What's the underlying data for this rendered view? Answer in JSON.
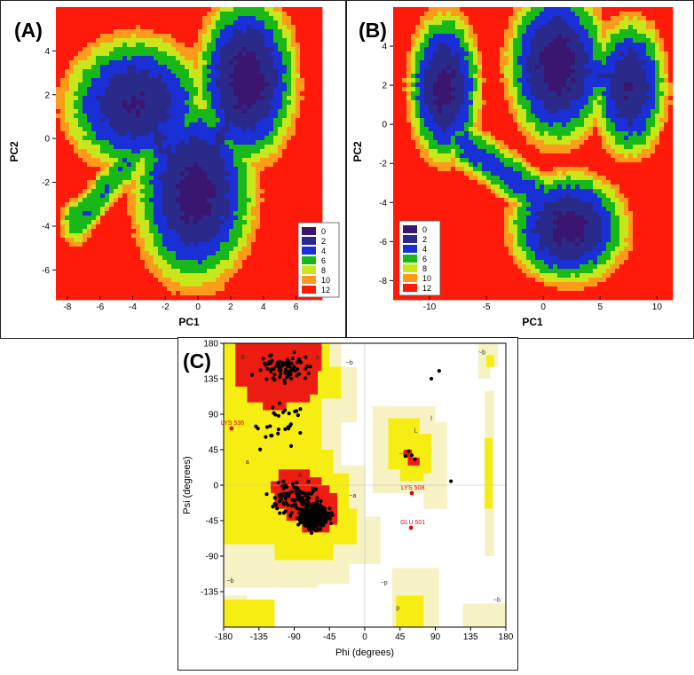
{
  "panels": [
    {
      "label": "(A)",
      "chart_data": {
        "type": "heatmap",
        "xlabel": "PC1",
        "ylabel": "PC2",
        "xlim": [
          -8.7,
          7.6
        ],
        "ylim": [
          -7.2,
          6.0
        ],
        "xticks": [
          -8,
          -6,
          -4,
          -2,
          0,
          2,
          4,
          6
        ],
        "yticks": [
          -6,
          -4,
          -2,
          0,
          2,
          4
        ],
        "legend": {
          "position": "bottom-right",
          "levels": [
            0,
            2,
            4,
            6,
            8,
            10,
            12
          ]
        },
        "basins": [
          {
            "x": -3.8,
            "y": 1.6,
            "energy": 1.5
          },
          {
            "x": 3.0,
            "y": 2.7,
            "energy": 0.5
          },
          {
            "x": -0.2,
            "y": -2.4,
            "energy": 0.8
          }
        ]
      }
    },
    {
      "label": "(B)",
      "chart_data": {
        "type": "heatmap",
        "xlabel": "PC1",
        "ylabel": "PC2",
        "xlim": [
          -13.2,
          11.3
        ],
        "ylim": [
          -8.8,
          6.0
        ],
        "xticks": [
          -10,
          -5,
          0,
          5,
          10
        ],
        "yticks": [
          -8,
          -6,
          -4,
          -2,
          0,
          2,
          4
        ],
        "legend": {
          "position": "bottom-left",
          "levels": [
            0,
            2,
            4,
            6,
            8,
            10,
            12
          ]
        },
        "basins": [
          {
            "x": -8.7,
            "y": 1.9,
            "energy": 0.9
          },
          {
            "x": 1.2,
            "y": 3.0,
            "energy": 0.5
          },
          {
            "x": 7.6,
            "y": 1.9,
            "energy": 1.5
          },
          {
            "x": 2.2,
            "y": -5.3,
            "energy": 0.8
          }
        ]
      }
    },
    {
      "label": "(C)",
      "chart_data": {
        "type": "scatter",
        "xlabel": "Phi (degrees)",
        "ylabel": "Psi (degrees)",
        "xlim": [
          -180,
          180
        ],
        "ylim": [
          -180,
          180
        ],
        "xticks": [
          -180,
          -135,
          -90,
          -45,
          0,
          45,
          90,
          135,
          180
        ],
        "yticks": [
          180,
          135,
          90,
          45,
          0,
          -45,
          -90,
          -135
        ],
        "region_labels": [
          {
            "text": "B",
            "phi": -158,
            "psi": 160
          },
          {
            "text": "b",
            "phi": -62,
            "psi": 160
          },
          {
            "text": "~b",
            "phi": -24,
            "psi": 153
          },
          {
            "text": "l",
            "phi": 84,
            "psi": 82
          },
          {
            "text": "L",
            "phi": 63,
            "psi": 67
          },
          {
            "text": "~l",
            "phi": 44,
            "psi": 37
          },
          {
            "text": "a",
            "phi": -152,
            "psi": 27
          },
          {
            "text": "A",
            "phi": -85,
            "psi": 10
          },
          {
            "text": "~a",
            "phi": -20,
            "psi": -16
          },
          {
            "text": "~b",
            "phi": -176,
            "psi": -124
          },
          {
            "text": "~p",
            "phi": 20,
            "psi": -126
          },
          {
            "text": "p",
            "phi": 40,
            "psi": -158
          },
          {
            "text": "~b",
            "phi": 145,
            "psi": 166
          },
          {
            "text": "~b",
            "phi": 164,
            "psi": -148
          }
        ],
        "annotated_residues": [
          {
            "label": "LYS 536",
            "phi": -170,
            "psi": 72
          },
          {
            "label": "LYS 508",
            "phi": 60,
            "psi": -10
          },
          {
            "label": "GLU 501",
            "phi": 59,
            "psi": -54
          }
        ]
      }
    }
  ]
}
